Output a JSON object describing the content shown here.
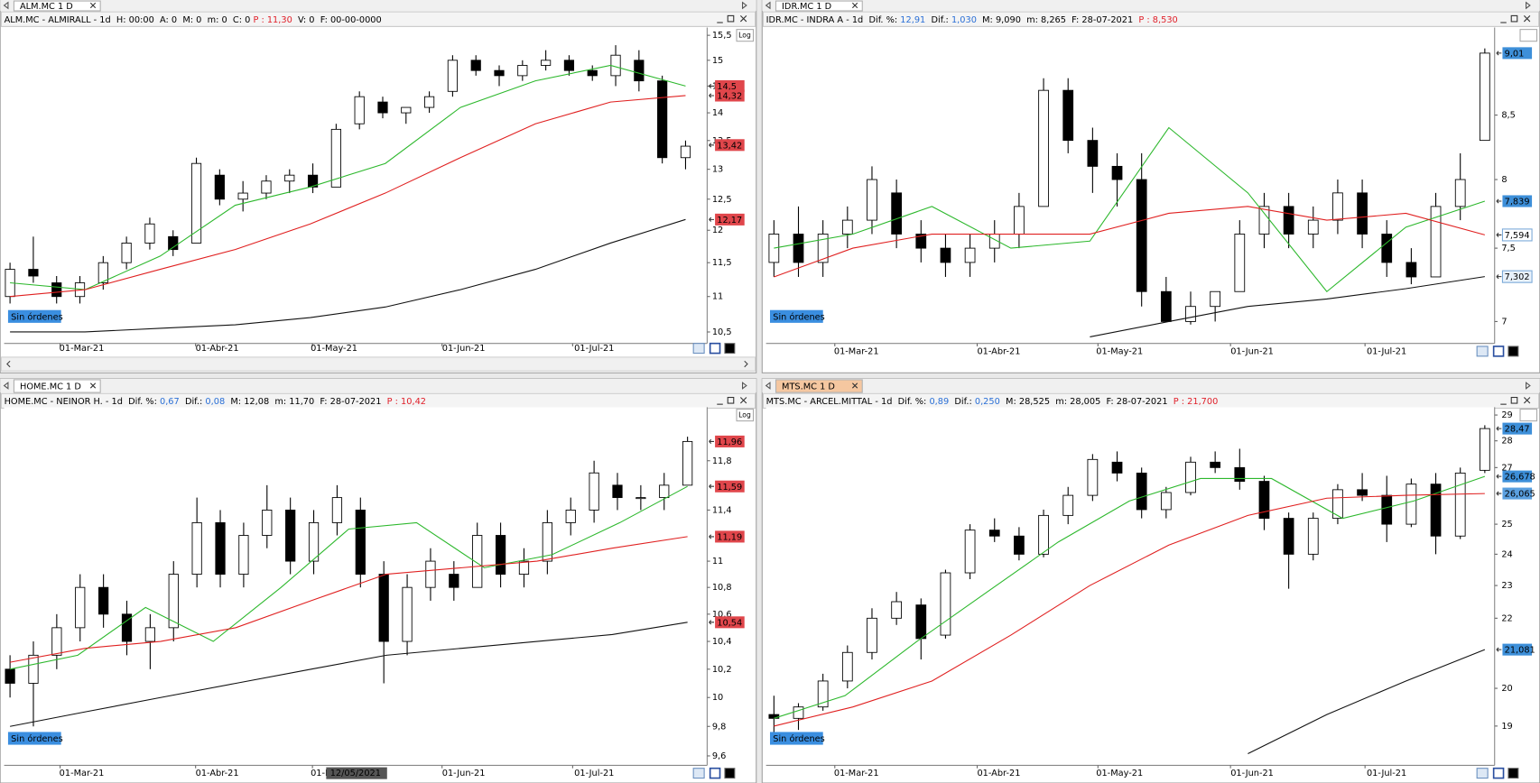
{
  "panels": [
    {
      "tab": "ALM.MC 1 D",
      "header": [
        {
          "text": "ALM.MC - ALMIRALL - 1d  H: 00:00  A: 0  M: 0  m: 0  C: 0 ",
          "color": "#000000"
        },
        {
          "text": "P : 11,30",
          "color": "#e0202a"
        },
        {
          "text": "  V: 0  F: 00-00-0000",
          "color": "#000000"
        }
      ],
      "log": true,
      "log_button": "Log",
      "badge": "Sin órdenes",
      "ylim": [
        10.37,
        15.66
      ],
      "yticks": [
        {
          "value": 15.5,
          "label": "15,5"
        },
        15,
        {
          "value": 14.5,
          "label": "14,5"
        },
        14,
        {
          "value": 13.5,
          "label": "13,5"
        },
        13,
        {
          "value": 12.5,
          "label": "12,5"
        },
        12,
        {
          "value": 11.5,
          "label": "11,5"
        },
        11,
        {
          "value": 10.5,
          "label": "10,5"
        }
      ],
      "xlabels": [
        "01-Mar-21",
        "01-Abr-21",
        "01-May-21",
        "01-Jun-21",
        "01-Jul-21"
      ],
      "price_tags": [
        {
          "value": 14.5,
          "label": "14,5",
          "color": "#e0464b"
        },
        {
          "value": 14.32,
          "label": "14,32",
          "color": "#e0464b"
        },
        {
          "value": 13.42,
          "label": "13,42",
          "color": "#e0464b"
        },
        {
          "value": 12.17,
          "label": "12,17",
          "color": "#e0464b"
        }
      ],
      "candles": [
        [
          11.0,
          11.5,
          10.9,
          11.4
        ],
        [
          11.4,
          11.9,
          11.2,
          11.3
        ],
        [
          11.2,
          11.3,
          10.9,
          11.0
        ],
        [
          11.0,
          11.3,
          10.9,
          11.2
        ],
        [
          11.2,
          11.6,
          11.1,
          11.5
        ],
        [
          11.5,
          11.9,
          11.4,
          11.8
        ],
        [
          11.8,
          12.2,
          11.7,
          12.1
        ],
        [
          11.9,
          12.0,
          11.6,
          11.7
        ],
        [
          11.8,
          13.2,
          11.8,
          13.1
        ],
        [
          12.9,
          13.0,
          12.4,
          12.5
        ],
        [
          12.5,
          12.8,
          12.3,
          12.6
        ],
        [
          12.6,
          12.9,
          12.5,
          12.8
        ],
        [
          12.8,
          13.0,
          12.6,
          12.9
        ],
        [
          12.9,
          13.1,
          12.6,
          12.7
        ],
        [
          12.7,
          13.8,
          12.7,
          13.7
        ],
        [
          13.8,
          14.4,
          13.7,
          14.3
        ],
        [
          14.2,
          14.3,
          13.9,
          14.0
        ],
        [
          14.0,
          14.1,
          13.8,
          14.1
        ],
        [
          14.1,
          14.4,
          14.0,
          14.3
        ],
        [
          14.4,
          15.1,
          14.3,
          15.0
        ],
        [
          15.0,
          15.1,
          14.7,
          14.8
        ],
        [
          14.8,
          14.9,
          14.5,
          14.7
        ],
        [
          14.7,
          15.0,
          14.6,
          14.9
        ],
        [
          14.9,
          15.2,
          14.8,
          15.0
        ],
        [
          15.0,
          15.1,
          14.7,
          14.8
        ],
        [
          14.8,
          14.9,
          14.6,
          14.7
        ],
        [
          14.7,
          15.3,
          14.5,
          15.1
        ],
        [
          15.0,
          15.2,
          14.4,
          14.6
        ],
        [
          14.6,
          14.7,
          13.1,
          13.2
        ],
        [
          13.2,
          13.5,
          13.0,
          13.4
        ]
      ],
      "mas": [
        {
          "color": "#2db82d",
          "values": [
            11.2,
            11.1,
            11.6,
            12.4,
            12.7,
            13.1,
            14.1,
            14.6,
            14.9,
            14.5
          ]
        },
        {
          "color": "#e02020",
          "values": [
            11.0,
            11.1,
            11.4,
            11.7,
            12.1,
            12.6,
            13.2,
            13.8,
            14.2,
            14.32
          ]
        },
        {
          "color": "#111111",
          "values": [
            10.5,
            10.5,
            10.55,
            10.6,
            10.7,
            10.85,
            11.1,
            11.4,
            11.8,
            12.17
          ]
        }
      ]
    },
    {
      "tab": "IDR.MC 1 D",
      "header": [
        {
          "text": "IDR.MC - INDRA A - 1d  Dif. %: ",
          "color": "#000000"
        },
        {
          "text": "12,91",
          "color": "#2a6fd6"
        },
        {
          "text": "  Dif.: ",
          "color": "#000000"
        },
        {
          "text": "1,030",
          "color": "#2a6fd6"
        },
        {
          "text": "  M: 9,090  m: 8,265  F: 28-07-2021  ",
          "color": "#000000"
        },
        {
          "text": "P : 8,530",
          "color": "#e0202a"
        }
      ],
      "log": true,
      "badge": "Sin órdenes",
      "ylim": [
        6.87,
        9.23
      ],
      "yticks": [
        {
          "value": 8.5,
          "label": "8,5"
        },
        8,
        {
          "value": 7.5,
          "label": "7,5"
        },
        7
      ],
      "xlabels": [
        "01-Mar-21",
        "01-Abr-21",
        "01-May-21",
        "01-Jun-21",
        "01-Jul-21"
      ],
      "price_tags": [
        {
          "value": 9.01,
          "label": "9,01",
          "color": "#3d8fd9"
        },
        {
          "value": 7.839,
          "label": "7,839",
          "color": "#3d8fd9"
        },
        {
          "value": 7.594,
          "label": "7,594",
          "color": "#ffffff"
        },
        {
          "value": 7.302,
          "label": "7,302",
          "color": "#e8f1fb"
        }
      ],
      "candles": [
        [
          7.4,
          7.7,
          7.3,
          7.6
        ],
        [
          7.6,
          7.8,
          7.3,
          7.4
        ],
        [
          7.4,
          7.7,
          7.3,
          7.6
        ],
        [
          7.6,
          7.8,
          7.5,
          7.7
        ],
        [
          7.7,
          8.1,
          7.6,
          8.0
        ],
        [
          7.9,
          8.0,
          7.5,
          7.6
        ],
        [
          7.6,
          7.7,
          7.4,
          7.5
        ],
        [
          7.5,
          7.6,
          7.3,
          7.4
        ],
        [
          7.4,
          7.6,
          7.3,
          7.5
        ],
        [
          7.5,
          7.7,
          7.4,
          7.6
        ],
        [
          7.6,
          7.9,
          7.5,
          7.8
        ],
        [
          7.8,
          8.8,
          7.8,
          8.7
        ],
        [
          8.7,
          8.8,
          8.2,
          8.3
        ],
        [
          8.3,
          8.4,
          7.9,
          8.1
        ],
        [
          8.1,
          8.2,
          7.8,
          8.0
        ],
        [
          8.0,
          8.2,
          7.1,
          7.2
        ],
        [
          7.2,
          7.3,
          7.0,
          7.0
        ],
        [
          7.0,
          7.2,
          6.98,
          7.1
        ],
        [
          7.1,
          7.2,
          7.0,
          7.2
        ],
        [
          7.2,
          7.7,
          7.2,
          7.6
        ],
        [
          7.6,
          7.9,
          7.5,
          7.8
        ],
        [
          7.8,
          7.9,
          7.5,
          7.6
        ],
        [
          7.6,
          7.8,
          7.5,
          7.7
        ],
        [
          7.7,
          8.0,
          7.6,
          7.9
        ],
        [
          7.9,
          8.0,
          7.5,
          7.6
        ],
        [
          7.6,
          7.7,
          7.3,
          7.4
        ],
        [
          7.4,
          7.5,
          7.25,
          7.3
        ],
        [
          7.3,
          7.9,
          7.3,
          7.8
        ],
        [
          7.8,
          8.2,
          7.7,
          8.0
        ],
        [
          8.3,
          9.05,
          8.3,
          9.01
        ]
      ],
      "mas": [
        {
          "color": "#2db82d",
          "values": [
            7.5,
            7.6,
            7.8,
            7.5,
            7.55,
            8.4,
            7.9,
            7.2,
            7.65,
            7.839
          ]
        },
        {
          "color": "#e02020",
          "values": [
            7.3,
            7.5,
            7.6,
            7.6,
            7.6,
            7.75,
            7.8,
            7.7,
            7.75,
            7.594
          ]
        },
        {
          "color": "#111111",
          "values": [
            null,
            null,
            null,
            null,
            6.9,
            7.0,
            7.1,
            7.15,
            7.22,
            7.302
          ]
        }
      ]
    },
    {
      "tab": "HOME.MC 1 D",
      "header": [
        {
          "text": "HOME.MC - NEINOR H. - 1d  Dif. %: ",
          "color": "#000000"
        },
        {
          "text": "0,67",
          "color": "#2a6fd6"
        },
        {
          "text": "  Dif.: ",
          "color": "#000000"
        },
        {
          "text": "0,08",
          "color": "#2a6fd6"
        },
        {
          "text": "  M: 12,08  m: 11,70  F: 28-07-2021  ",
          "color": "#000000"
        },
        {
          "text": "P : 10,42",
          "color": "#e0202a"
        }
      ],
      "log": true,
      "log_button": "Log",
      "badge": "Sin órdenes",
      "crosshair_date": "12/05/2021",
      "ylim": [
        9.55,
        12.25
      ],
      "yticks": [
        {
          "value": 11.8,
          "label": "11,8"
        },
        {
          "value": 11.4,
          "label": "11,4"
        },
        11,
        {
          "value": 10.8,
          "label": "10,8"
        },
        {
          "value": 10.6,
          "label": "10,6"
        },
        {
          "value": 10.4,
          "label": "10,4"
        },
        {
          "value": 10.2,
          "label": "10,2"
        },
        10,
        {
          "value": 9.8,
          "label": "9,8"
        },
        {
          "value": 9.6,
          "label": "9,6"
        }
      ],
      "xlabels": [
        "01-Mar-21",
        "01-Abr-21",
        "01-May-21",
        "01-Jun-21",
        "01-Jul-21"
      ],
      "price_tags": [
        {
          "value": 11.96,
          "label": "11,96",
          "color": "#e0464b"
        },
        {
          "value": 11.59,
          "label": "11,59",
          "color": "#e0464b"
        },
        {
          "value": 11.19,
          "label": "11,19",
          "color": "#e0464b"
        },
        {
          "value": 10.54,
          "label": "10,54",
          "color": "#e0464b"
        }
      ],
      "candles": [
        [
          10.2,
          10.3,
          10.0,
          10.1
        ],
        [
          10.1,
          10.4,
          9.8,
          10.3
        ],
        [
          10.3,
          10.6,
          10.2,
          10.5
        ],
        [
          10.5,
          10.9,
          10.4,
          10.8
        ],
        [
          10.8,
          10.9,
          10.5,
          10.6
        ],
        [
          10.6,
          10.7,
          10.3,
          10.4
        ],
        [
          10.4,
          10.6,
          10.2,
          10.5
        ],
        [
          10.5,
          11.0,
          10.4,
          10.9
        ],
        [
          10.9,
          11.5,
          10.8,
          11.3
        ],
        [
          11.3,
          11.4,
          10.8,
          10.9
        ],
        [
          10.9,
          11.3,
          10.8,
          11.2
        ],
        [
          11.2,
          11.6,
          11.1,
          11.4
        ],
        [
          11.4,
          11.5,
          10.9,
          11.0
        ],
        [
          11.0,
          11.4,
          10.9,
          11.3
        ],
        [
          11.3,
          11.6,
          11.2,
          11.5
        ],
        [
          11.4,
          11.5,
          10.8,
          10.9
        ],
        [
          10.9,
          11.0,
          10.1,
          10.4
        ],
        [
          10.4,
          10.9,
          10.3,
          10.8
        ],
        [
          10.8,
          11.1,
          10.7,
          11.0
        ],
        [
          10.9,
          11.0,
          10.7,
          10.8
        ],
        [
          10.8,
          11.3,
          10.8,
          11.2
        ],
        [
          11.2,
          11.3,
          10.8,
          10.9
        ],
        [
          10.9,
          11.1,
          10.8,
          11.0
        ],
        [
          11.0,
          11.4,
          10.9,
          11.3
        ],
        [
          11.3,
          11.5,
          11.2,
          11.4
        ],
        [
          11.4,
          11.8,
          11.3,
          11.7
        ],
        [
          11.6,
          11.7,
          11.4,
          11.5
        ],
        [
          11.5,
          11.6,
          11.4,
          11.5
        ],
        [
          11.5,
          11.7,
          11.4,
          11.6
        ],
        [
          11.6,
          12.0,
          11.6,
          11.96
        ]
      ],
      "mas": [
        {
          "color": "#2db82d",
          "values": [
            10.2,
            10.3,
            10.65,
            10.4,
            10.8,
            11.25,
            11.3,
            10.95,
            11.05,
            11.3,
            11.59
          ]
        },
        {
          "color": "#e02020",
          "values": [
            10.25,
            10.35,
            10.4,
            10.5,
            10.7,
            10.9,
            10.95,
            11.0,
            11.1,
            11.19
          ]
        },
        {
          "color": "#111111",
          "values": [
            9.8,
            9.9,
            10.0,
            10.1,
            10.2,
            10.3,
            10.35,
            10.4,
            10.45,
            10.54
          ]
        }
      ]
    },
    {
      "tab": "MTS.MC 1 D",
      "active": true,
      "header": [
        {
          "text": "MTS.MC - ARCEL.MITTAL - 1d  Dif. %: ",
          "color": "#000000"
        },
        {
          "text": "0,89",
          "color": "#2a6fd6"
        },
        {
          "text": "  Dif.: ",
          "color": "#000000"
        },
        {
          "text": "0,250",
          "color": "#2a6fd6"
        },
        {
          "text": "  M: 28,525  m: 28,005  F: 28-07-2021  ",
          "color": "#000000"
        },
        {
          "text": "P : 21,700",
          "color": "#e0202a"
        }
      ],
      "log": true,
      "badge": "Sin órdenes",
      "ylim": [
        18.06,
        29.31
      ],
      "yticks": [
        29,
        28,
        27,
        25,
        24,
        23,
        22,
        20,
        19
      ],
      "xlabels": [
        "01-Mar-21",
        "01-Abr-21",
        "01-May-21",
        "01-Jun-21",
        "01-Jul-21"
      ],
      "price_tags": [
        {
          "value": 28.47,
          "label": "28,47",
          "color": "#3d8fd9"
        },
        {
          "value": 26.678,
          "label": "26,678",
          "color": "#3d8fd9"
        },
        {
          "value": 26.065,
          "label": "26,065",
          "color": "#5aa0e0"
        },
        {
          "value": 21.081,
          "label": "21,081",
          "color": "#3d8fd9"
        }
      ],
      "candles": [
        [
          19.3,
          19.8,
          18.8,
          19.2
        ],
        [
          19.2,
          19.6,
          18.9,
          19.5
        ],
        [
          19.5,
          20.4,
          19.4,
          20.2
        ],
        [
          20.2,
          21.2,
          20.0,
          21.0
        ],
        [
          21.0,
          22.3,
          20.8,
          22.0
        ],
        [
          22.0,
          22.8,
          21.8,
          22.5
        ],
        [
          22.4,
          22.6,
          20.8,
          21.4
        ],
        [
          21.5,
          23.5,
          21.4,
          23.4
        ],
        [
          23.4,
          25.0,
          23.2,
          24.8
        ],
        [
          24.8,
          25.2,
          24.4,
          24.6
        ],
        [
          24.6,
          24.9,
          23.8,
          24.0
        ],
        [
          24.0,
          25.5,
          23.9,
          25.3
        ],
        [
          25.3,
          26.3,
          25.0,
          26.0
        ],
        [
          26.0,
          27.5,
          25.8,
          27.3
        ],
        [
          27.2,
          27.6,
          26.5,
          26.8
        ],
        [
          26.8,
          27.0,
          25.2,
          25.5
        ],
        [
          25.5,
          26.3,
          25.2,
          26.1
        ],
        [
          26.1,
          27.4,
          26.0,
          27.2
        ],
        [
          27.2,
          27.6,
          26.8,
          27.0
        ],
        [
          27.0,
          27.7,
          26.2,
          26.5
        ],
        [
          26.5,
          26.7,
          24.8,
          25.2
        ],
        [
          25.2,
          25.4,
          22.9,
          24.0
        ],
        [
          24.0,
          25.4,
          23.8,
          25.2
        ],
        [
          25.2,
          26.4,
          25.0,
          26.2
        ],
        [
          26.2,
          26.8,
          25.8,
          26.0
        ],
        [
          26.0,
          26.7,
          24.4,
          25.0
        ],
        [
          25.0,
          26.6,
          24.9,
          26.4
        ],
        [
          26.4,
          26.8,
          24.0,
          24.6
        ],
        [
          24.6,
          27.0,
          24.5,
          26.8
        ],
        [
          26.9,
          28.6,
          26.8,
          28.47
        ]
      ],
      "mas": [
        {
          "color": "#2db82d",
          "values": [
            19.2,
            19.8,
            21.3,
            22.8,
            24.4,
            25.8,
            26.6,
            26.6,
            25.2,
            25.8,
            26.678
          ]
        },
        {
          "color": "#e02020",
          "values": [
            19.0,
            19.5,
            20.2,
            21.5,
            23.0,
            24.3,
            25.3,
            25.9,
            26.0,
            26.065
          ]
        },
        {
          "color": "#111111",
          "values": [
            null,
            null,
            null,
            null,
            null,
            null,
            18.3,
            19.3,
            20.2,
            21.081
          ]
        }
      ]
    }
  ]
}
